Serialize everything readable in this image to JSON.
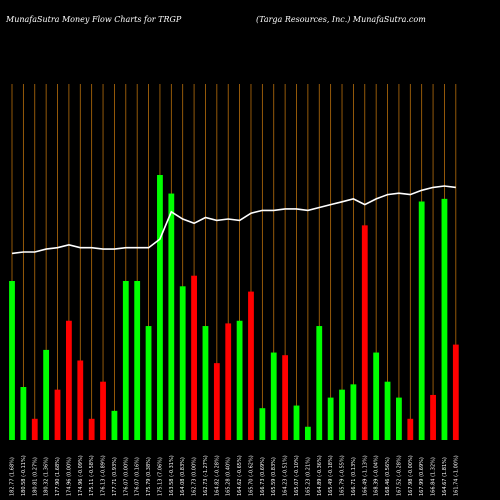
{
  "header": {
    "left_title": "MunafaSutra  Money Flow  Charts for TRGP",
    "right_title": "(Targa  Resources,  Inc.) MunafaSutra.com"
  },
  "colors": {
    "background": "#000000",
    "up": "#00ff00",
    "down": "#ff0000",
    "price_line": "#ffffff",
    "grid": "#b86f0c"
  },
  "chart_data": {
    "type": "bar",
    "title": "",
    "xlabel": "",
    "ylabel": "",
    "bar_ylim": [
      0,
      100
    ],
    "line_ylim": [
      0,
      100
    ],
    "grid": "vertical",
    "bars": [
      {
        "label": "182.77 (1.68%)",
        "value": 60,
        "dir": "up"
      },
      {
        "label": "180.58 (-0.11%)",
        "value": 20,
        "dir": "up"
      },
      {
        "label": "180.81 (0.27%)",
        "value": 8,
        "dir": "down"
      },
      {
        "label": "180.32 (1.36%)",
        "value": 34,
        "dir": "up"
      },
      {
        "label": "177.90 (1.68%)",
        "value": 19,
        "dir": "down"
      },
      {
        "label": "174.96 (0.00%)",
        "value": 45,
        "dir": "down"
      },
      {
        "label": "174.96 (-0.09%)",
        "value": 30,
        "dir": "down"
      },
      {
        "label": "175.11 (-0.58%)",
        "value": 8,
        "dir": "down"
      },
      {
        "label": "176.13 (-0.89%)",
        "value": 22,
        "dir": "down"
      },
      {
        "label": "177.71 (0.93%)",
        "value": 11,
        "dir": "up"
      },
      {
        "label": "176.07 (0.00%)",
        "value": 60,
        "dir": "up"
      },
      {
        "label": "176.07 (0.16%)",
        "value": 60,
        "dir": "up"
      },
      {
        "label": "175.79 (0.38%)",
        "value": 43,
        "dir": "up"
      },
      {
        "label": "175.13 (7.06%)",
        "value": 100,
        "dir": "up"
      },
      {
        "label": "163.58 (-0.31%)",
        "value": 93,
        "dir": "up"
      },
      {
        "label": "164.08 (0.83%)",
        "value": 58,
        "dir": "up"
      },
      {
        "label": "162.73 (0.00%)",
        "value": 62,
        "dir": "down"
      },
      {
        "label": "162.73 (-1.27%)",
        "value": 43,
        "dir": "up"
      },
      {
        "label": "164.82 (-0.28%)",
        "value": 29,
        "dir": "down"
      },
      {
        "label": "165.28 (0.40%)",
        "value": 44,
        "dir": "down"
      },
      {
        "label": "164.62 (-0.65%)",
        "value": 45,
        "dir": "up"
      },
      {
        "label": "165.70 (-0.62%)",
        "value": 56,
        "dir": "down"
      },
      {
        "label": "166.73 (0.69%)",
        "value": 12,
        "dir": "up"
      },
      {
        "label": "165.59 (0.83%)",
        "value": 33,
        "dir": "up"
      },
      {
        "label": "164.23 (-0.51%)",
        "value": 32,
        "dir": "down"
      },
      {
        "label": "165.07 (-0.10%)",
        "value": 13,
        "dir": "up"
      },
      {
        "label": "165.23 (0.21%)",
        "value": 5,
        "dir": "up"
      },
      {
        "label": "164.89 (-0.36%)",
        "value": 43,
        "dir": "up"
      },
      {
        "label": "165.49 (-0.18%)",
        "value": 16,
        "dir": "up"
      },
      {
        "label": "165.79 (-0.55%)",
        "value": 19,
        "dir": "up"
      },
      {
        "label": "166.71 (0.13%)",
        "value": 21,
        "dir": "up"
      },
      {
        "label": "166.49 (-1.13%)",
        "value": 81,
        "dir": "down"
      },
      {
        "label": "168.39 (-0.04%)",
        "value": 33,
        "dir": "up"
      },
      {
        "label": "168.46 (0.56%)",
        "value": 22,
        "dir": "up"
      },
      {
        "label": "167.52 (-0.28%)",
        "value": 16,
        "dir": "up"
      },
      {
        "label": "167.98 (-0.00%)",
        "value": 8,
        "dir": "down"
      },
      {
        "label": "167.99 (0.69%)",
        "value": 90,
        "dir": "up"
      },
      {
        "label": "166.84 (1.32%)",
        "value": 17,
        "dir": "down"
      },
      {
        "label": "164.67 (1.81%)",
        "value": 91,
        "dir": "up"
      },
      {
        "label": "161.74 (-1.00%)",
        "value": 36,
        "dir": "down"
      }
    ],
    "price_line": [
      6,
      7,
      7,
      9,
      10,
      12,
      10,
      10,
      9,
      9,
      10,
      10,
      10,
      16,
      35,
      30,
      27,
      31,
      29,
      30,
      29,
      34,
      36,
      36,
      37,
      37,
      36,
      38,
      40,
      42,
      44,
      40,
      44,
      47,
      48,
      47,
      50,
      52,
      53,
      52
    ]
  }
}
